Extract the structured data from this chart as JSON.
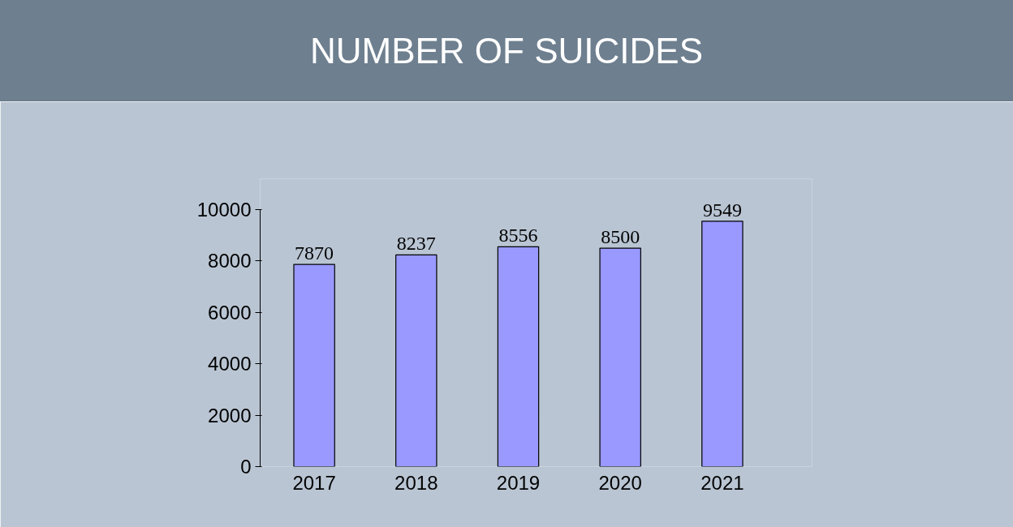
{
  "chart_data": {
    "type": "bar",
    "title": "NUMBER OF SUICIDES",
    "categories": [
      "2017",
      "2018",
      "2019",
      "2020",
      "2021"
    ],
    "values": [
      7870,
      8237,
      8556,
      8500,
      9549
    ],
    "color": "#9999ff",
    "ylim": [
      0,
      10000
    ],
    "yticks": [
      0,
      2000,
      4000,
      6000,
      8000,
      10000
    ],
    "grid": false,
    "data_labels": true
  }
}
